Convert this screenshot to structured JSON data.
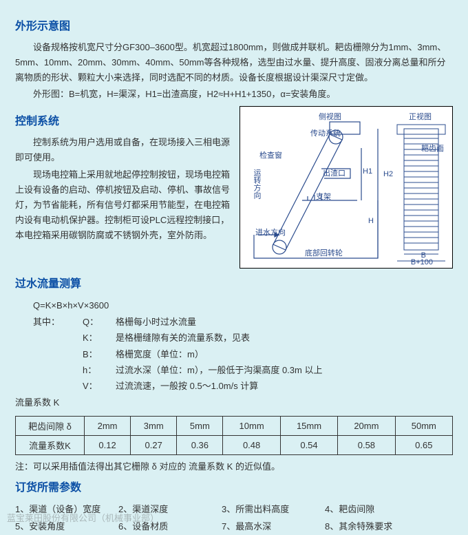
{
  "sections": {
    "outline": {
      "title": "外形示意图",
      "p1": "设备规格按机宽尺寸分GF300–3600型。机宽超过1800mm，则做成并联机。耙齿栅隙分为1mm、3mm、5mm、10mm、20mm、30mm、40mm、50mm等各种规格，选型由过水量、提升高度、固液分离总量和所分离物质的形状、颗粒大小来选择，同时选配不同的材质。设备长度根据设计渠深尺寸定做。",
      "p2": "外形图：B=机宽，H=渠深，H1=出渣高度，H2≈H+H1+1350，α=安装角度。"
    },
    "control": {
      "title": "控制系统",
      "p1": "控制系统为用户选用或自备，在现场接入三相电源即可使用。",
      "p2": "现场电控箱上采用就地起停控制按钮，现场电控箱上设有设备的启动、停机按钮及启动、停机、事故信号灯，为节省能耗，所有信号灯都采用节能型，在电控箱内设有电动机保护器。控制柜可设PLC远程控制接口，本电控箱采用碳钢防腐或不锈钢外壳，室外防雨。"
    },
    "flow": {
      "title": "过水流量测算",
      "formula": "Q=K×B×h×V×3600",
      "prefix": "其中：",
      "items": [
        {
          "k": "Q：",
          "v": "格栅每小时过水流量"
        },
        {
          "k": "K：",
          "v": "是格栅缝隙有关的流量系数，见表"
        },
        {
          "k": "B：",
          "v": "格栅宽度（单位：m）"
        },
        {
          "k": "h：",
          "v": "过流水深（单位：m），一般低于沟渠高度 0.3m 以上"
        },
        {
          "k": "V：",
          "v": "过流流速，一般按 0.5～1.0m/s 计算"
        }
      ],
      "ktitle": "流量系数 K"
    },
    "table": {
      "header_label": "耙齿间隙 δ",
      "row_label": "流量系数K",
      "columns": [
        "2mm",
        "3mm",
        "5mm",
        "10mm",
        "15mm",
        "20mm",
        "50mm"
      ],
      "values": [
        "0.12",
        "0.27",
        "0.36",
        "0.48",
        "0.54",
        "0.58",
        "0.65"
      ]
    },
    "note": "注：可以采用插值法得出其它栅隙 δ 对应的 流量系数 K 的近似值。",
    "order": {
      "title": "订货所需参数",
      "items": [
        "1、渠道（设备）宽度",
        "2、渠道深度",
        "3、所需出料高度",
        "4、耙齿间隙",
        "5、安装角度",
        "6、设备材质",
        "7、最高水深",
        "8、其余特殊要求"
      ]
    }
  },
  "diagram": {
    "labels": {
      "side_view": "侧视图",
      "front_view": "正视图",
      "drive": "传动系统",
      "inspect": "检查窗",
      "direction": "运转方向",
      "outlet": "出渣口",
      "support": "支架",
      "water_dir": "进水方向",
      "bottom_wheel": "底部回转轮",
      "rake_face": "耙齿面",
      "H1": "H1",
      "H2": "H2",
      "H": "H",
      "B": "B",
      "Bplus": "B+100"
    },
    "colors": {
      "line": "#2a4b8d",
      "bg": "#ffffff"
    }
  },
  "watermark": "蓝宝莱田股份有限公司（机械事业部）"
}
